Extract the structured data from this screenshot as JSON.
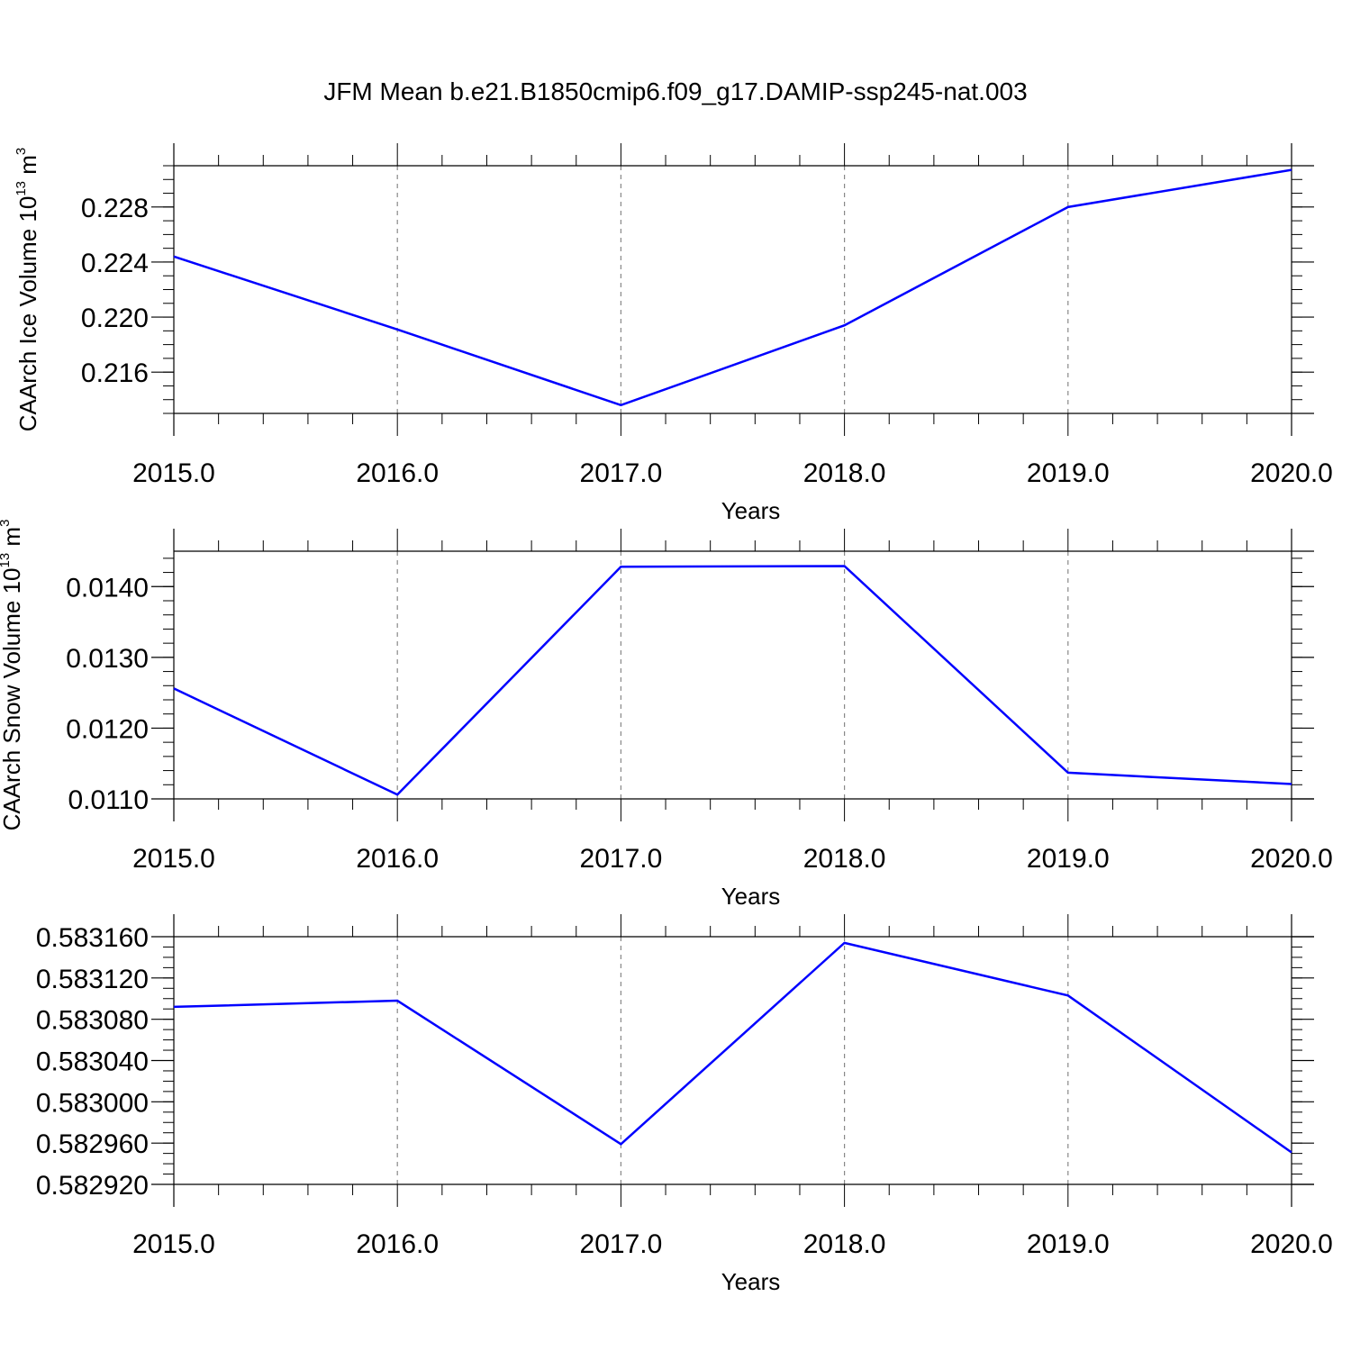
{
  "title": "JFM Mean b.e21.B1850cmip6.f09_g17.DAMIP-ssp245-nat.003",
  "line_color": "#0000ff",
  "chart_data": [
    {
      "type": "line",
      "title": "",
      "xlabel": "Years",
      "ylabel_main": "CAArch Ice Volume 10",
      "ylabel_sup": "13",
      "ylabel_unit": " m",
      "ylabel_unit_sup": "3",
      "x": [
        2015,
        2016,
        2017,
        2018,
        2019,
        2020
      ],
      "x_tick_labels": [
        "2015.0",
        "2016.0",
        "2017.0",
        "2018.0",
        "2019.0",
        "2020.0"
      ],
      "xlim": [
        2015,
        2020
      ],
      "ylim": [
        0.213,
        0.231
      ],
      "y_ticks": [
        0.216,
        0.22,
        0.224,
        0.228
      ],
      "y_tick_labels": [
        "0.216",
        "0.220",
        "0.224",
        "0.228"
      ],
      "y_minor_step": 0.001,
      "series": [
        {
          "values": [
            0.2244,
            0.2191,
            0.2136,
            0.2194,
            0.228,
            0.2307
          ]
        }
      ],
      "grid": "vertical dashed at major x ticks"
    },
    {
      "type": "line",
      "title": "",
      "xlabel": "Years",
      "ylabel_main": "CAArch Snow Volume 10",
      "ylabel_sup": "13",
      "ylabel_unit": " m",
      "ylabel_unit_sup": "3",
      "x": [
        2015,
        2016,
        2017,
        2018,
        2019,
        2020
      ],
      "x_tick_labels": [
        "2015.0",
        "2016.0",
        "2017.0",
        "2018.0",
        "2019.0",
        "2020.0"
      ],
      "xlim": [
        2015,
        2020
      ],
      "ylim": [
        0.011,
        0.0145
      ],
      "y_ticks": [
        0.011,
        0.012,
        0.013,
        0.014
      ],
      "y_tick_labels": [
        "0.0110",
        "0.0120",
        "0.0130",
        "0.0140"
      ],
      "y_minor_step": 0.0002,
      "series": [
        {
          "values": [
            0.01256,
            0.01106,
            0.01428,
            0.01429,
            0.01137,
            0.01121
          ]
        }
      ],
      "grid": "vertical dashed at major x ticks"
    },
    {
      "type": "line",
      "title": "",
      "xlabel": "Years",
      "ylabel_main": "",
      "ylabel_sup": "",
      "ylabel_unit": "",
      "ylabel_unit_sup": "",
      "x": [
        2015,
        2016,
        2017,
        2018,
        2019,
        2020
      ],
      "x_tick_labels": [
        "2015.0",
        "2016.0",
        "2017.0",
        "2018.0",
        "2019.0",
        "2020.0"
      ],
      "xlim": [
        2015,
        2020
      ],
      "ylim": [
        0.58292,
        0.58316
      ],
      "y_ticks": [
        0.58292,
        0.58296,
        0.583,
        0.58304,
        0.58308,
        0.58312,
        0.58316
      ],
      "y_tick_labels": [
        "0.582920",
        "0.582960",
        "0.583000",
        "0.583040",
        "0.583080",
        "0.583120",
        "0.583160"
      ],
      "y_minor_step": 1e-05,
      "series": [
        {
          "values": [
            0.583092,
            0.583098,
            0.582959,
            0.583154,
            0.583103,
            0.582951
          ]
        }
      ],
      "grid": "vertical dashed at major x ticks"
    }
  ]
}
